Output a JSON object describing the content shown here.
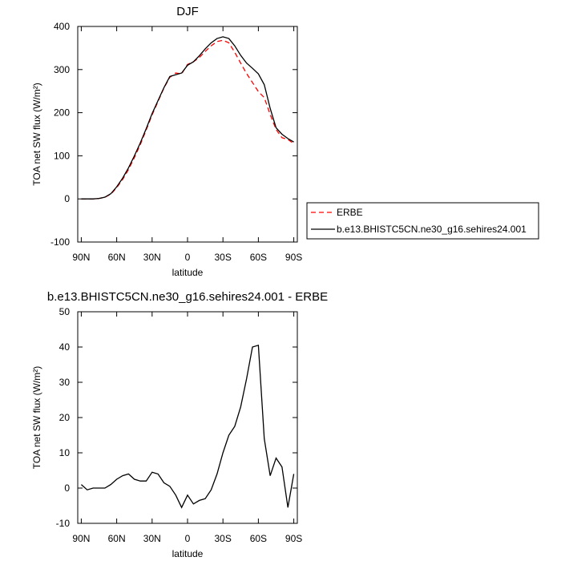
{
  "chart_data": [
    {
      "type": "line",
      "title": "DJF",
      "x_label": "latitude",
      "y_label": "TOA net SW flux (W/m²)",
      "x": [
        90,
        85,
        80,
        75,
        70,
        65,
        60,
        55,
        50,
        45,
        40,
        35,
        30,
        25,
        20,
        15,
        10,
        5,
        0,
        -5,
        -10,
        -15,
        -20,
        -25,
        -30,
        -35,
        -40,
        -45,
        -50,
        -55,
        -60,
        -65,
        -70,
        -75,
        -80,
        -85,
        -90
      ],
      "xlim": [
        93,
        -93
      ],
      "xticks": [
        {
          "value": 90,
          "label": "90N"
        },
        {
          "value": 60,
          "label": "60N"
        },
        {
          "value": 30,
          "label": "30N"
        },
        0,
        {
          "value": -30,
          "label": "30S"
        },
        {
          "value": -60,
          "label": "60S"
        },
        {
          "value": -90,
          "label": "90S"
        }
      ],
      "ylim": [
        -100,
        400
      ],
      "yticks": [
        -100,
        0,
        100,
        200,
        300,
        400
      ],
      "legend": "right",
      "series": [
        {
          "name": "ERBE",
          "color": "#ff0000",
          "line_style": "dashed",
          "values": [
            0,
            0,
            0,
            1,
            4,
            11,
            26,
            45,
            68,
            96,
            126,
            160,
            195,
            226,
            257,
            282,
            292,
            290,
            312,
            318,
            328,
            342,
            355,
            365,
            368,
            362,
            340,
            315,
            291,
            270,
            249,
            235,
            196,
            161,
            142,
            138,
            128
          ]
        },
        {
          "name": "b.e13.BHISTC5CN.ne30_g16.sehires24.001",
          "color": "#000000",
          "line_style": "solid",
          "values": [
            0,
            0,
            0,
            1,
            4,
            12,
            28,
            48,
            72,
            100,
            130,
            163,
            198,
            228,
            258,
            284,
            288,
            292,
            310,
            318,
            332,
            348,
            362,
            372,
            376,
            372,
            355,
            333,
            315,
            303,
            290,
            265,
            210,
            165,
            150,
            140,
            132
          ]
        }
      ]
    },
    {
      "type": "line",
      "title": "b.e13.BHISTC5CN.ne30_g16.sehires24.001 - ERBE",
      "x_label": "latitude",
      "y_label": "TOA net SW flux (W/m²)",
      "x": [
        90,
        85,
        80,
        75,
        70,
        65,
        60,
        55,
        50,
        45,
        40,
        35,
        30,
        25,
        20,
        15,
        10,
        5,
        0,
        -5,
        -10,
        -15,
        -20,
        -25,
        -30,
        -35,
        -40,
        -45,
        -50,
        -55,
        -60,
        -65,
        -70,
        -75,
        -80,
        -85,
        -90
      ],
      "xlim": [
        93,
        -93
      ],
      "xticks": [
        {
          "value": 90,
          "label": "90N"
        },
        {
          "value": 60,
          "label": "60N"
        },
        {
          "value": 30,
          "label": "30N"
        },
        0,
        {
          "value": -30,
          "label": "30S"
        },
        {
          "value": -60,
          "label": "60S"
        },
        {
          "value": -90,
          "label": "90S"
        }
      ],
      "ylim": [
        -10,
        50
      ],
      "yticks": [
        -10,
        0,
        10,
        20,
        30,
        40,
        50
      ],
      "color": "#000000",
      "values": [
        1,
        -0.5,
        0,
        0,
        0,
        1,
        2.5,
        3.5,
        4,
        2.5,
        2,
        2,
        4.5,
        4,
        1.5,
        0.5,
        -2,
        -5.5,
        -2,
        -4.5,
        -3.5,
        -3,
        -0.5,
        4,
        10,
        15,
        17.5,
        23,
        31,
        40,
        40.5,
        14,
        3.5,
        8.5,
        6,
        -5.5,
        4
      ]
    }
  ]
}
